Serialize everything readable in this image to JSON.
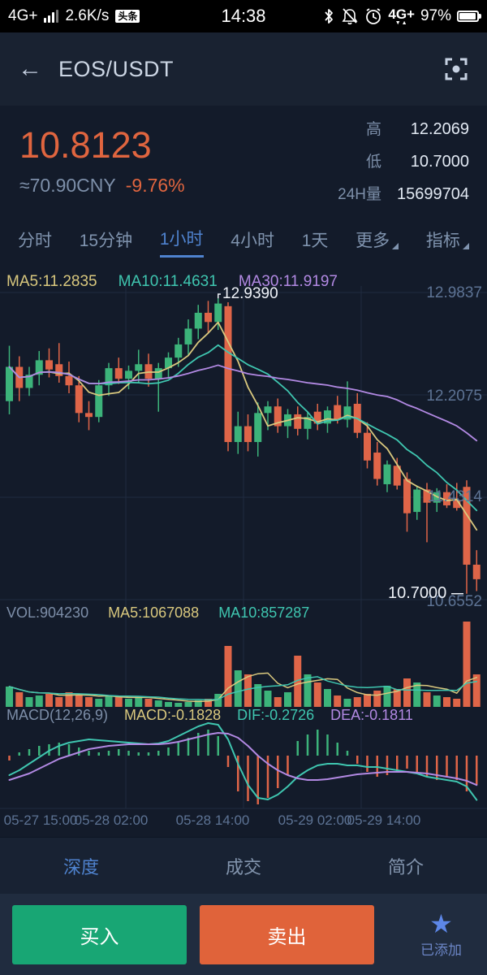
{
  "status_bar": {
    "network": "4G+",
    "speed": "2.6K/s",
    "badge": "头条",
    "time": "14:38",
    "network2": "4G+",
    "battery_percent": "97%"
  },
  "header": {
    "back_icon": "←",
    "title": "EOS/USDT"
  },
  "price_panel": {
    "price": "10.8123",
    "approx_cny": "≈70.90CNY",
    "change_percent": "-9.76%",
    "high_label": "高",
    "high": "12.2069",
    "low_label": "低",
    "low": "10.7000",
    "volume_label": "24H量",
    "volume": "15699704"
  },
  "intervals": {
    "items": [
      {
        "label": "分时"
      },
      {
        "label": "15分钟"
      },
      {
        "label": "1小时"
      },
      {
        "label": "4小时"
      },
      {
        "label": "1天"
      },
      {
        "label": "更多",
        "dropdown": true
      },
      {
        "label": "指标",
        "dropdown": true
      }
    ],
    "active_index": 2
  },
  "chart_data": {
    "type": "candlestick+volume+macd",
    "legend": {
      "ma5": "MA5:11.2835",
      "ma10": "MA10:11.4631",
      "ma30": "MA30:11.9197"
    },
    "volume_legend": {
      "vol": "VOL:904230",
      "ma5": "MA5:1067088",
      "ma10": "MA10:857287"
    },
    "macd_legend": {
      "params": "MACD(12,26,9)",
      "macd": "MACD:-0.1828",
      "dif": "DIF:-0.2726",
      "dea": "DEA:-0.1811"
    },
    "y_axis_labels": [
      "12.9837",
      "12.2075",
      "11.4314",
      "10.6552"
    ],
    "y_axis_values": [
      12.9837,
      12.2075,
      11.4314,
      10.6552
    ],
    "x_axis_labels": [
      "05-27 15:00",
      "05-28 02:00",
      "05-28 14:00",
      "05-29 02:00",
      "05-29 14:00"
    ],
    "annotations": {
      "high": {
        "label": "12.9390",
        "index": 21,
        "value": 12.939
      },
      "low": {
        "label": "10.7000",
        "index": 46,
        "value": 10.7
      }
    },
    "price_range": [
      10.6552,
      12.9837
    ],
    "candles": [
      [
        12.16,
        12.58,
        12.06,
        12.42
      ],
      [
        12.42,
        12.5,
        12.16,
        12.26
      ],
      [
        12.26,
        12.42,
        12.2,
        12.36
      ],
      [
        12.36,
        12.54,
        12.28,
        12.47
      ],
      [
        12.47,
        12.56,
        12.34,
        12.4
      ],
      [
        12.44,
        12.6,
        12.3,
        12.35
      ],
      [
        12.35,
        12.46,
        12.22,
        12.28
      ],
      [
        12.28,
        12.35,
        12.0,
        12.07
      ],
      [
        12.07,
        12.16,
        11.94,
        12.04
      ],
      [
        12.04,
        12.32,
        12.0,
        12.28
      ],
      [
        12.28,
        12.45,
        12.2,
        12.41
      ],
      [
        12.41,
        12.49,
        12.29,
        12.33
      ],
      [
        12.33,
        12.43,
        12.25,
        12.39
      ],
      [
        12.39,
        12.55,
        12.3,
        12.44
      ],
      [
        12.44,
        12.52,
        12.27,
        12.33
      ],
      [
        12.33,
        12.45,
        12.08,
        12.41
      ],
      [
        12.41,
        12.53,
        12.33,
        12.49
      ],
      [
        12.49,
        12.64,
        12.42,
        12.59
      ],
      [
        12.59,
        12.78,
        12.51,
        12.71
      ],
      [
        12.71,
        12.89,
        12.63,
        12.83
      ],
      [
        12.83,
        12.92,
        12.68,
        12.76
      ],
      [
        12.76,
        12.939,
        12.7,
        12.9
      ],
      [
        12.88,
        12.91,
        11.78,
        11.85
      ],
      [
        11.85,
        12.08,
        11.76,
        11.97
      ],
      [
        11.97,
        12.06,
        11.78,
        11.85
      ],
      [
        11.85,
        12.15,
        11.74,
        12.07
      ],
      [
        12.07,
        12.16,
        11.94,
        12.12
      ],
      [
        12.12,
        12.18,
        11.92,
        11.97
      ],
      [
        11.97,
        12.1,
        11.88,
        12.06
      ],
      [
        12.06,
        12.12,
        11.9,
        11.95
      ],
      [
        11.95,
        12.08,
        11.87,
        12.04
      ],
      [
        12.08,
        12.14,
        11.94,
        11.99
      ],
      [
        11.99,
        12.12,
        11.92,
        12.09
      ],
      [
        12.13,
        12.2,
        11.99,
        12.02
      ],
      [
        12.02,
        12.31,
        11.96,
        12.12
      ],
      [
        12.14,
        12.22,
        11.88,
        11.92
      ],
      [
        11.92,
        12.0,
        11.65,
        11.71
      ],
      [
        11.77,
        11.85,
        11.52,
        11.57
      ],
      [
        11.53,
        11.71,
        11.47,
        11.68
      ],
      [
        11.67,
        11.73,
        11.49,
        11.52
      ],
      [
        11.57,
        11.62,
        11.17,
        11.31
      ],
      [
        11.32,
        11.52,
        11.26,
        11.49
      ],
      [
        11.49,
        11.54,
        11.09,
        11.39
      ],
      [
        11.39,
        11.5,
        11.32,
        11.47
      ],
      [
        11.47,
        11.53,
        11.35,
        11.37
      ],
      [
        11.41,
        11.54,
        11.33,
        11.35
      ],
      [
        11.51,
        11.56,
        10.7,
        10.92
      ],
      [
        10.92,
        11.03,
        10.72,
        10.81
      ]
    ],
    "volumes": [
      565000,
      407000,
      271000,
      316000,
      362000,
      271000,
      407000,
      316000,
      271000,
      226000,
      316000,
      271000,
      226000,
      271000,
      226000,
      181000,
      136000,
      113000,
      136000,
      181000,
      226000,
      362000,
      1695000,
      1017000,
      904000,
      633000,
      452000,
      271000,
      407000,
      1424000,
      904000,
      678000,
      497000,
      316000,
      226000,
      271000,
      362000,
      452000,
      588000,
      497000,
      791000,
      678000,
      407000,
      316000,
      271000,
      226000,
      2373000,
      904000
    ],
    "macd": {
      "histogram": [
        -0.03,
        0.02,
        0.04,
        0.06,
        0.07,
        0.08,
        0.07,
        0.05,
        0.03,
        0.02,
        0.03,
        0.04,
        0.03,
        0.02,
        0.02,
        0.03,
        0.05,
        0.08,
        0.11,
        0.14,
        0.16,
        0.12,
        -0.07,
        -0.22,
        -0.28,
        -0.3,
        -0.26,
        -0.2,
        -0.12,
        0.09,
        0.13,
        0.16,
        0.13,
        0.08,
        0.03,
        -0.05,
        -0.1,
        -0.13,
        -0.12,
        -0.1,
        -0.08,
        -0.1,
        -0.13,
        -0.15,
        -0.13,
        -0.15,
        -0.22,
        -0.18
      ],
      "dif": [
        -0.12,
        -0.09,
        -0.05,
        -0.01,
        0.03,
        0.06,
        0.08,
        0.09,
        0.1,
        0.095,
        0.09,
        0.085,
        0.08,
        0.075,
        0.07,
        0.075,
        0.09,
        0.12,
        0.15,
        0.18,
        0.2,
        0.19,
        0.1,
        -0.05,
        -0.18,
        -0.26,
        -0.27,
        -0.24,
        -0.19,
        -0.13,
        -0.09,
        -0.06,
        -0.05,
        -0.05,
        -0.06,
        -0.06,
        -0.07,
        -0.07,
        -0.08,
        -0.09,
        -0.1,
        -0.11,
        -0.13,
        -0.14,
        -0.15,
        -0.16,
        -0.19,
        -0.2726
      ],
      "dea": [
        -0.15,
        -0.13,
        -0.11,
        -0.08,
        -0.05,
        -0.02,
        0.0,
        0.02,
        0.04,
        0.05,
        0.06,
        0.065,
        0.07,
        0.07,
        0.07,
        0.07,
        0.075,
        0.085,
        0.1,
        0.115,
        0.13,
        0.14,
        0.135,
        0.11,
        0.06,
        0.0,
        -0.05,
        -0.09,
        -0.12,
        -0.14,
        -0.15,
        -0.15,
        -0.145,
        -0.135,
        -0.125,
        -0.115,
        -0.11,
        -0.105,
        -0.1,
        -0.1,
        -0.1,
        -0.105,
        -0.11,
        -0.12,
        -0.13,
        -0.14,
        -0.155,
        -0.1811
      ]
    },
    "colors": {
      "up": "#3cb37a",
      "down": "#df6548",
      "ma5": "#d9c87e",
      "ma10": "#3fc6b0",
      "ma30": "#b289e3",
      "grid": "#1f2b40",
      "axis_text": "#5d7394",
      "annotation": "#eef2f8"
    }
  },
  "bottom_tabs": {
    "items": [
      {
        "label": "深度"
      },
      {
        "label": "成交"
      },
      {
        "label": "简介"
      }
    ],
    "active_index": 0
  },
  "actions": {
    "buy": "买入",
    "sell": "卖出",
    "favorite": "已添加",
    "star_icon": "★"
  }
}
